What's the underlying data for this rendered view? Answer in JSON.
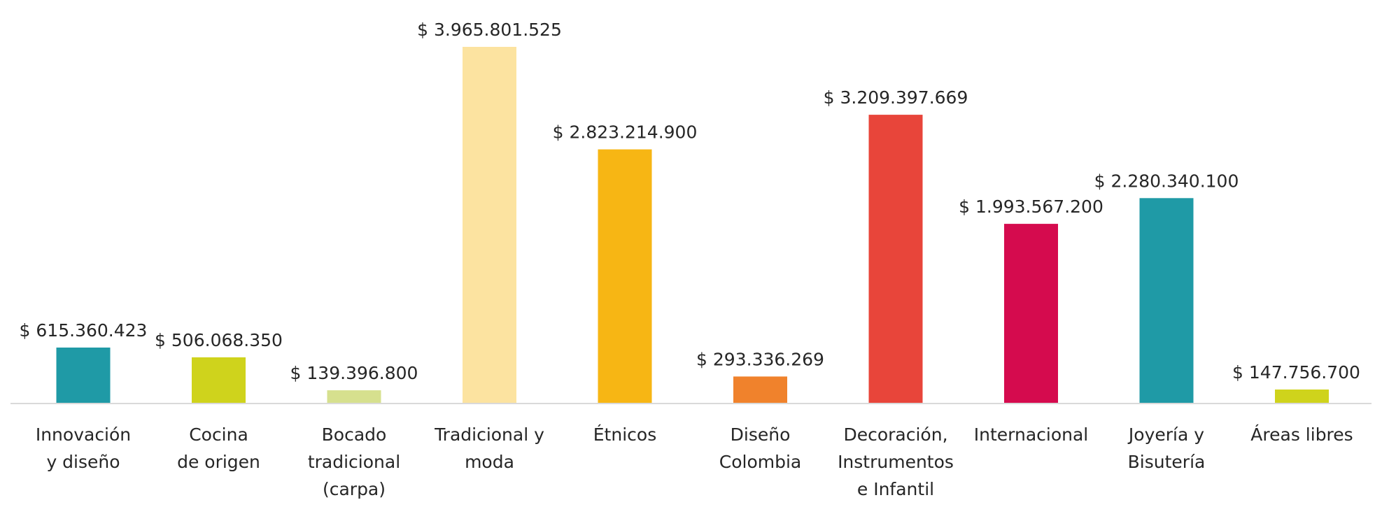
{
  "chart_data": {
    "type": "bar",
    "title": "",
    "xlabel": "",
    "ylabel": "",
    "categories": [
      [
        "Innovación",
        "y diseño"
      ],
      [
        "Cocina",
        "de origen"
      ],
      [
        "Bocado",
        "tradicional",
        "(carpa)"
      ],
      [
        "Tradicional y",
        "moda"
      ],
      [
        "Étnicos"
      ],
      [
        "Diseño",
        "Colombia"
      ],
      [
        "Decoración,",
        "Instrumentos",
        "e Infantil"
      ],
      [
        "Internacional"
      ],
      [
        "Joyería y",
        "Bisutería"
      ],
      [
        "Áreas libres"
      ]
    ],
    "values": [
      615360423,
      506068350,
      139396800,
      3965801525,
      2823214900,
      293336269,
      3209397669,
      1993567200,
      2280340100,
      147756700
    ],
    "value_labels": [
      "$ 615.360.423",
      "$ 506.068.350",
      "$ 139.396.800",
      "$ 3.965.801.525",
      "$ 2.823.214.900",
      "$ 293.336.269",
      "$ 3.209.397.669",
      "$ 1.993.567.200",
      "$ 2.280.340.100",
      "$ 147.756.700"
    ],
    "colors": [
      "#1f9aa6",
      "#cfd31c",
      "#d6e08e",
      "#fce3a0",
      "#f7b614",
      "#f0822c",
      "#e8453a",
      "#d50b4e",
      "#1f9aa6",
      "#cfd31c"
    ],
    "ylim": [
      0,
      3965801525
    ],
    "grid": false,
    "legend": "none"
  }
}
